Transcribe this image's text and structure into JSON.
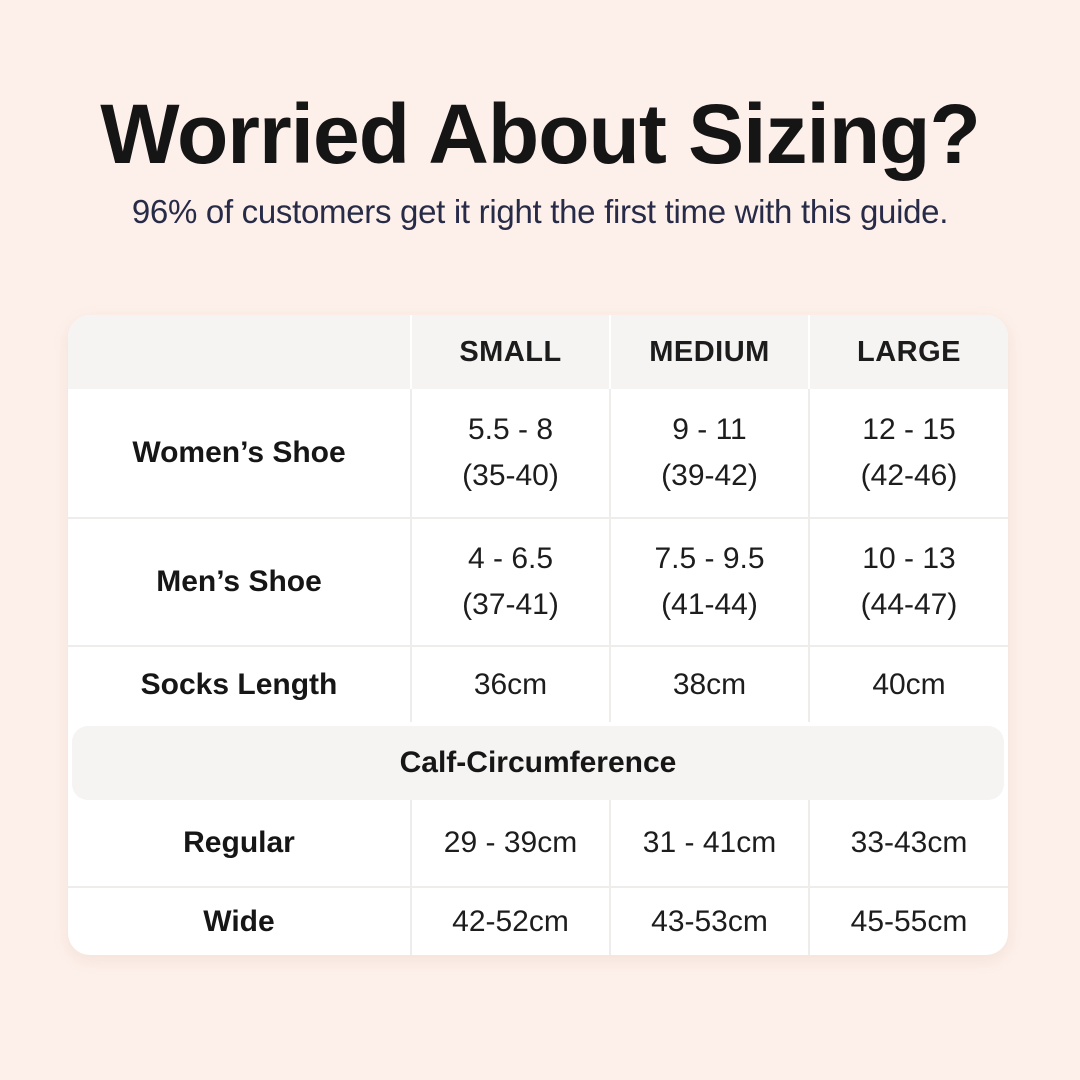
{
  "colors": {
    "page-bg": "#fdf0ea",
    "table-bg": "#ffffff",
    "band-bg": "#f5f4f3",
    "divider": "#efedec",
    "title-text": "#151515",
    "subtitle-text": "#272b48",
    "cell-text": "#1d1d1d"
  },
  "header": {
    "title": "Worried About Sizing?",
    "subtitle": "96% of customers get it right the first time with this guide."
  },
  "table": {
    "column_headers": [
      "SMALL",
      "MEDIUM",
      "LARGE"
    ],
    "shoe_rows": [
      {
        "label": "Women’s Shoe",
        "small_line1": "5.5 - 8",
        "small_line2": "(35-40)",
        "medium_line1": "9 - 11",
        "medium_line2": "(39-42)",
        "large_line1": "12 - 15",
        "large_line2": "(42-46)"
      },
      {
        "label": "Men’s Shoe",
        "small_line1": "4 - 6.5",
        "small_line2": "(37-41)",
        "medium_line1": "7.5 - 9.5",
        "medium_line2": "(41-44)",
        "large_line1": "10 - 13",
        "large_line2": "(44-47)"
      }
    ],
    "socks_row": {
      "label": "Socks Length",
      "small": "36cm",
      "medium": "38cm",
      "large": "40cm"
    },
    "section_header": "Calf-Circumference",
    "calf_rows": [
      {
        "label": "Regular",
        "small": "29 - 39cm",
        "medium": "31 - 41cm",
        "large": "33-43cm"
      },
      {
        "label": "Wide",
        "small": "42-52cm",
        "medium": "43-53cm",
        "large": "45-55cm"
      }
    ]
  },
  "chart_data": {
    "type": "table",
    "title": "Worried About Sizing?",
    "subtitle": "96% of customers get it right the first time with this guide.",
    "column_headers": [
      "",
      "SMALL",
      "MEDIUM",
      "LARGE"
    ],
    "rows": [
      [
        "Women’s Shoe",
        "5.5 - 8 (35-40)",
        "9 - 11 (39-42)",
        "12 - 15 (42-46)"
      ],
      [
        "Men’s Shoe",
        "4 - 6.5 (37-41)",
        "7.5 - 9.5 (41-44)",
        "10 - 13 (44-47)"
      ],
      [
        "Socks Length",
        "36cm",
        "38cm",
        "40cm"
      ],
      [
        "Calf-Circumference – Regular",
        "29 - 39cm",
        "31 - 41cm",
        "33-43cm"
      ],
      [
        "Calf-Circumference – Wide",
        "42-52cm",
        "43-53cm",
        "45-55cm"
      ]
    ]
  }
}
